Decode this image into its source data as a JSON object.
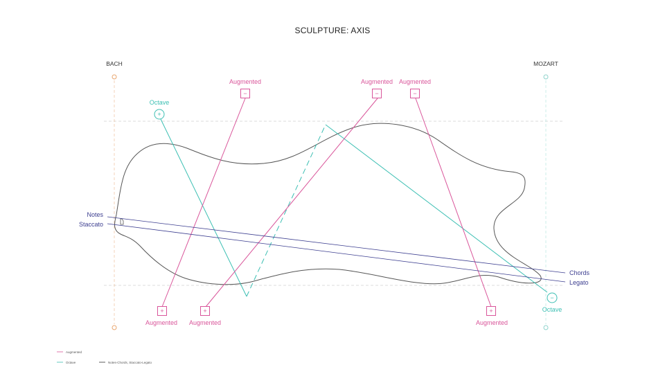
{
  "title": "SCULPTURE: AXIS",
  "axes": {
    "left": "BACH",
    "right": "MOZART"
  },
  "labels": {
    "augmented_top_1": "Augmented",
    "augmented_top_2": "Augmented",
    "augmented_top_3": "Augmented",
    "augmented_bottom_1": "Augmented",
    "augmented_bottom_2": "Augmented",
    "augmented_bottom_3": "Augmented",
    "octave_top": "Octave",
    "octave_bottom": "Octave",
    "notes": "Notes",
    "staccato": "Staccato",
    "chords": "Chords",
    "legato": "Legato"
  },
  "markers": {
    "plus": "+",
    "minus": "−"
  },
  "legend": [
    {
      "label": "Augmented",
      "color": "#d9559a"
    },
    {
      "label": "Octave",
      "color": "#3cbfb3"
    },
    {
      "label": "Notes-Chords, Staccato-Legato",
      "color": "#333333"
    }
  ],
  "colors": {
    "augmented": "#d9559a",
    "octave": "#3cbfb3",
    "notes_line": "#3b3d8f",
    "bach_axis": "#e8a66f",
    "mozart_axis": "#8fd3cc",
    "guide": "#cfcfcf",
    "sculpture": "#555555"
  }
}
